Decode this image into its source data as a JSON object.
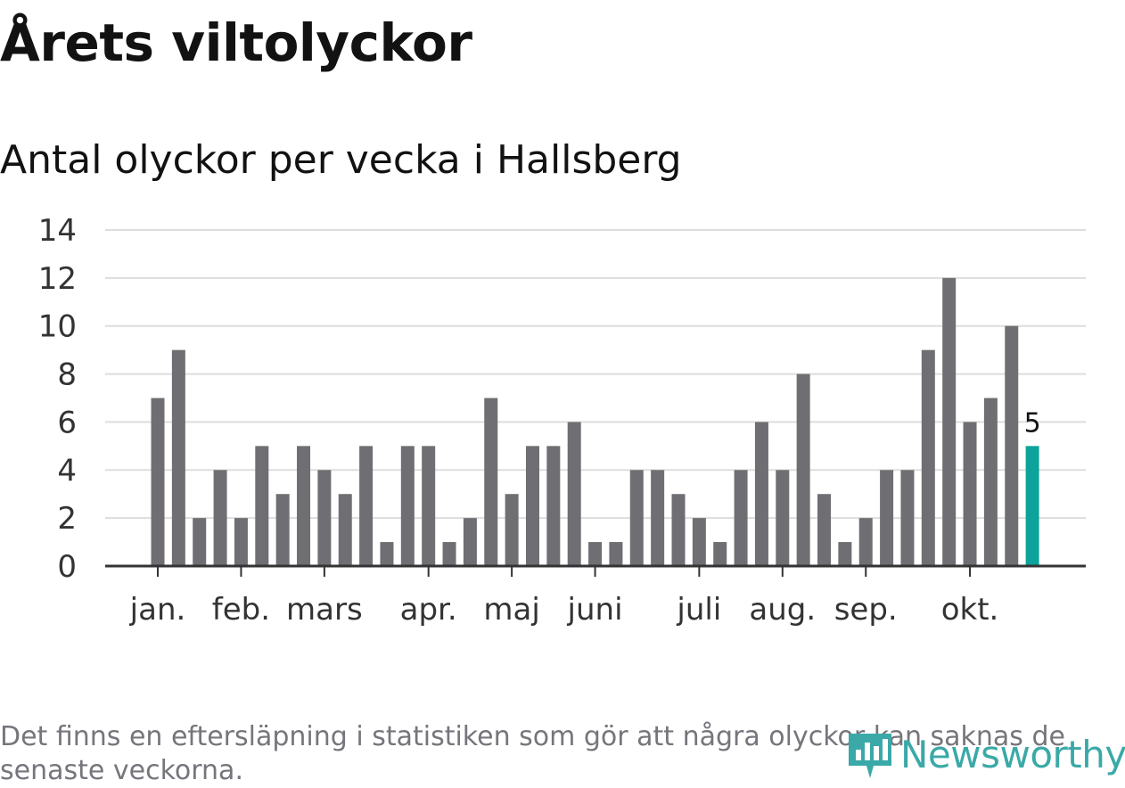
{
  "header": {
    "title": "Årets viltolyckor",
    "subtitle": "Antal olyckor per vecka i Hallsberg"
  },
  "chart_data": {
    "type": "bar",
    "title": "Årets viltolyckor",
    "subtitle": "Antal olyckor per vecka i Hallsberg",
    "xlabel": "",
    "ylabel": "",
    "ylim": [
      0,
      14
    ],
    "yticks": [
      "0",
      "2",
      "4",
      "6",
      "8",
      "10",
      "12",
      "14"
    ],
    "grid": true,
    "month_labels": [
      {
        "label": "jan.",
        "week_index": 0.5
      },
      {
        "label": "feb.",
        "week_index": 4.5
      },
      {
        "label": "mars",
        "week_index": 8.5
      },
      {
        "label": "apr.",
        "week_index": 13.5
      },
      {
        "label": "maj",
        "week_index": 17.5
      },
      {
        "label": "juni",
        "week_index": 21.5
      },
      {
        "label": "juli",
        "week_index": 26.5
      },
      {
        "label": "aug.",
        "week_index": 30.5
      },
      {
        "label": "sep.",
        "week_index": 34.5
      },
      {
        "label": "okt.",
        "week_index": 39.5
      }
    ],
    "values": [
      7,
      9,
      2,
      4,
      2,
      5,
      3,
      5,
      4,
      3,
      5,
      1,
      5,
      5,
      1,
      2,
      7,
      3,
      5,
      5,
      6,
      1,
      1,
      4,
      4,
      3,
      2,
      1,
      4,
      6,
      4,
      8,
      3,
      1,
      2,
      4,
      4,
      9,
      12,
      6,
      7,
      10,
      5
    ],
    "highlight_last": true,
    "last_value_label": "5",
    "bar_color": "#6f6e73",
    "highlight_color": "#0ca39a",
    "grid_color": "#dddddd",
    "axis_color": "#333333"
  },
  "footer": {
    "note": "Det finns en eftersläpning i statistiken som gör att några olyckor kan saknas de senaste veckorna.",
    "logo_text": "Newsworthy",
    "logo_icon": "newsworthy-chart-icon",
    "logo_color": "#3aa9a7"
  }
}
